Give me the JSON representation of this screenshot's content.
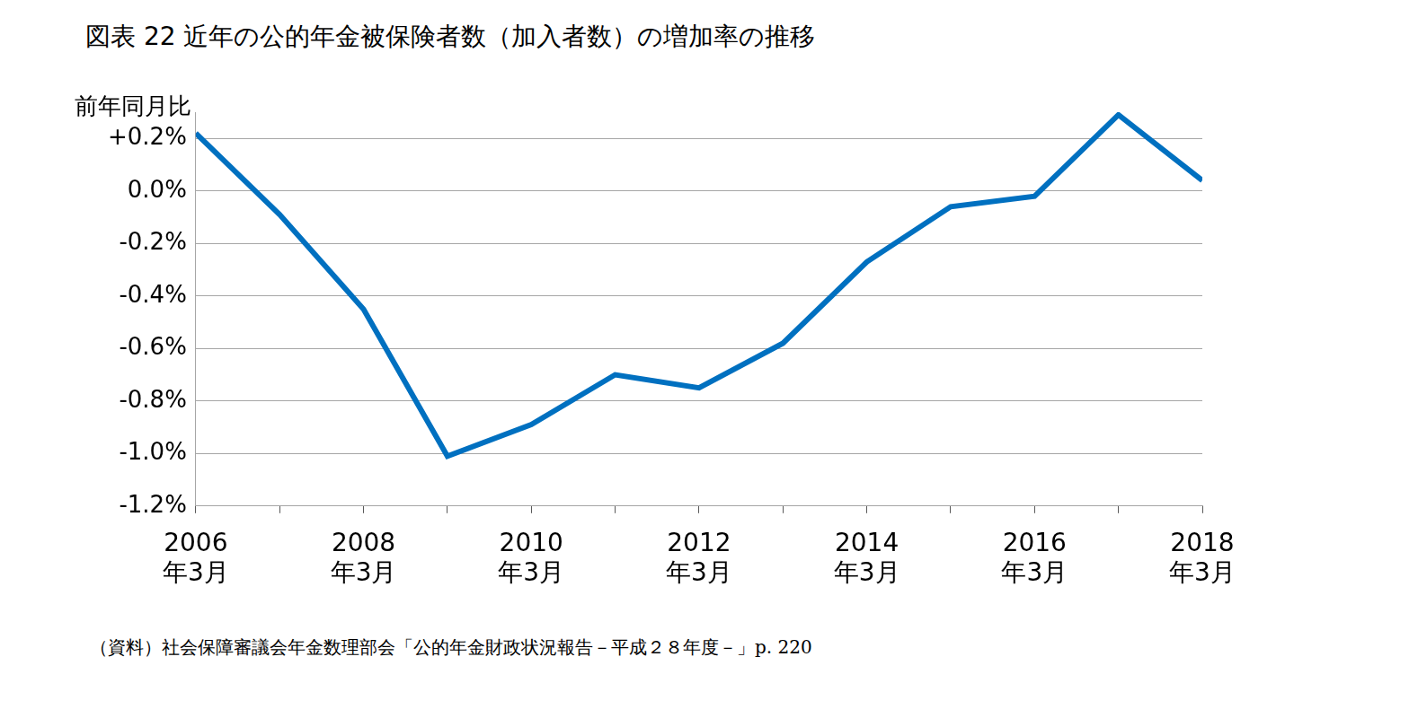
{
  "chart_data": {
    "type": "line",
    "title": "図表 22  近年の公的年金被保険者数（加入者数）の増加率の推移",
    "y_label": "前年同月比",
    "note": "（資料）社会保障審議会年金数理部会「公的年金財政状況報告－平成２８年度－」p. 220",
    "categories": [
      "2006\n年3月",
      null,
      "2008\n年3月",
      null,
      "2010\n年3月",
      null,
      "2012\n年3月",
      null,
      "2014\n年3月",
      null,
      "2016\n年3月",
      null,
      "2018\n年3月"
    ],
    "values": [
      0.22,
      -0.09,
      -0.45,
      -1.01,
      -0.89,
      -0.7,
      -0.75,
      -0.58,
      -0.27,
      -0.06,
      -0.02,
      0.29,
      0.04
    ],
    "color": "#0070c0",
    "ylim": [
      -1.2,
      0.3
    ],
    "yticks": [
      {
        "value": -1.2,
        "label": "-1.2%"
      },
      {
        "value": -1.0,
        "label": "-1.0%"
      },
      {
        "value": -0.8,
        "label": "-0.8%"
      },
      {
        "value": -0.6,
        "label": "-0.6%"
      },
      {
        "value": -0.4,
        "label": "-0.4%"
      },
      {
        "value": -0.2,
        "label": "-0.2%"
      },
      {
        "value": 0.0,
        "label": "0.0%"
      },
      {
        "value": 0.2,
        "label": "+0.2%"
      }
    ],
    "grid": true
  }
}
